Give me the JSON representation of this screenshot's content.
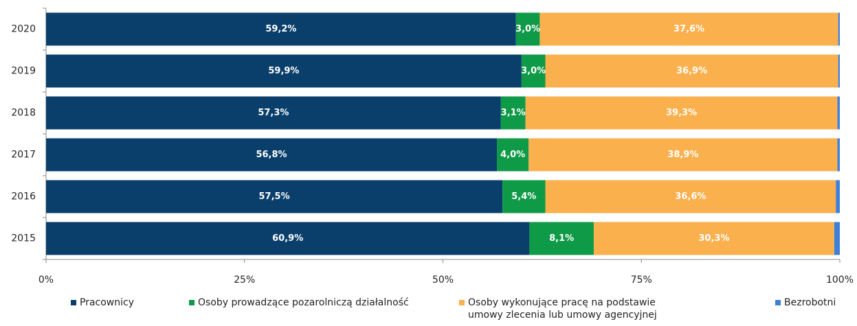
{
  "chart_data": {
    "type": "stacked-bar-horizontal",
    "categories": [
      "2020",
      "2019",
      "2018",
      "2017",
      "2016",
      "2015"
    ],
    "series": [
      {
        "name": "Pracownicy",
        "color": "#0a3f6b",
        "values": [
          59.2,
          59.9,
          57.3,
          56.8,
          57.5,
          60.9
        ],
        "value_labels": [
          "59,2%",
          "59,9%",
          "57,3%",
          "56,8%",
          "57,5%",
          "60,9%"
        ]
      },
      {
        "name": "Osoby prowadzące pozarolniczą działalność",
        "color": "#0f9a47",
        "values": [
          3.0,
          3.0,
          3.1,
          4.0,
          5.4,
          8.1
        ],
        "value_labels": [
          "3,0%",
          "3,0%",
          "3,1%",
          "4,0%",
          "5,4%",
          "8,1%"
        ]
      },
      {
        "name": "Osoby wykonujące pracę na podstawie umowy zlecenia lub umowy agencyjnej",
        "color": "#fbb04e",
        "values": [
          37.6,
          36.9,
          39.3,
          38.9,
          36.6,
          30.3
        ],
        "value_labels": [
          "37,6%",
          "36,9%",
          "39,3%",
          "38,9%",
          "36,6%",
          "30,3%"
        ]
      },
      {
        "name": "Bezrobotni",
        "color": "#3f80d6",
        "values": [
          0.2,
          0.2,
          0.3,
          0.3,
          0.5,
          0.7
        ]
      }
    ],
    "xlim": [
      0,
      100
    ],
    "xticks": [
      {
        "value": 0,
        "label": "0%"
      },
      {
        "value": 25,
        "label": "25%"
      },
      {
        "value": 50,
        "label": "50%"
      },
      {
        "value": 75,
        "label": "75%"
      },
      {
        "value": 100,
        "label": "100%"
      }
    ],
    "legend": "bottom"
  }
}
